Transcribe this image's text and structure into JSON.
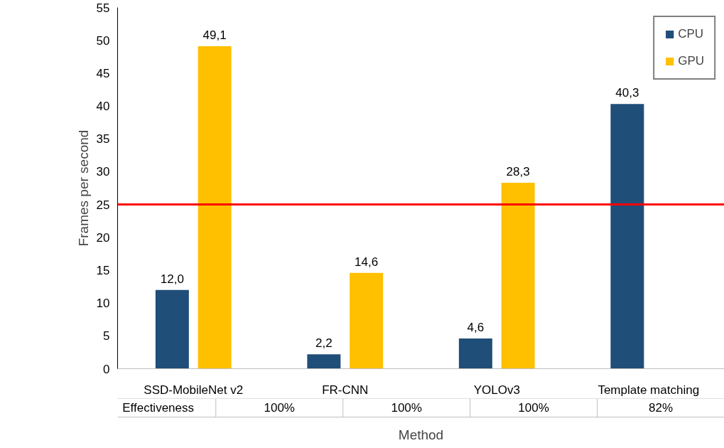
{
  "chart_data": {
    "type": "bar",
    "categories": [
      "SSD-MobileNet v2",
      "FR-CNN",
      "YOLOv3",
      "Template matching"
    ],
    "series": [
      {
        "name": "CPU",
        "color": "#1f4e79",
        "values": [
          12.0,
          2.2,
          4.6,
          40.3
        ],
        "value_labels": [
          "12,0",
          "2,2",
          "4,6",
          "40,3"
        ]
      },
      {
        "name": "GPU",
        "color": "#ffc000",
        "values": [
          49.1,
          14.6,
          28.3,
          null
        ],
        "value_labels": [
          "49,1",
          "14,6",
          "28,3",
          null
        ]
      }
    ],
    "ylabel": "Frames per second",
    "xlabel": "Method",
    "ylim": [
      0,
      55
    ],
    "yticks": [
      0,
      5,
      10,
      15,
      20,
      25,
      30,
      35,
      40,
      45,
      50,
      55
    ],
    "ref_lines": [
      {
        "axis": "y",
        "value": 25,
        "color": "#ff0000"
      }
    ],
    "annotations": [
      "Effectiveness",
      "100%",
      "100%",
      "100%",
      "82%"
    ],
    "grid": false,
    "legend": "top right"
  }
}
